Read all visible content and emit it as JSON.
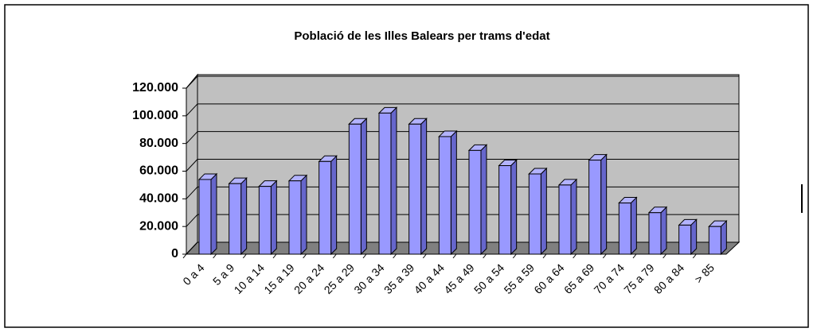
{
  "chart_data": {
    "type": "bar3d",
    "title": "Població de les Illes Balears per trams d'edat",
    "categories": [
      "0 a 4",
      "5 a 9",
      "10 a 14",
      "15 a 19",
      "20 a 24",
      "25 a 29",
      "30 a 34",
      "35 a 39",
      "40 a 44",
      "45 a 49",
      "50 a 54",
      "55 a 59",
      "60 a 64",
      "65 a 69",
      "70 a 74",
      "75 a 79",
      "80 a 84",
      "> 85"
    ],
    "values": [
      54000,
      51000,
      49000,
      53000,
      67000,
      94000,
      102000,
      94000,
      85000,
      75000,
      64000,
      58000,
      50000,
      68000,
      37000,
      30000,
      21000,
      20000
    ],
    "color": "#9999ff",
    "ylim": [
      0,
      120000
    ],
    "yticks": [
      {
        "value": 0,
        "label": "0"
      },
      {
        "value": 20000,
        "label": "20.000"
      },
      {
        "value": 40000,
        "label": "40.000"
      },
      {
        "value": 60000,
        "label": "60.000"
      },
      {
        "value": 80000,
        "label": "80.000"
      },
      {
        "value": 100000,
        "label": "100.000"
      },
      {
        "value": 120000,
        "label": "120.000"
      }
    ],
    "grid": true
  }
}
